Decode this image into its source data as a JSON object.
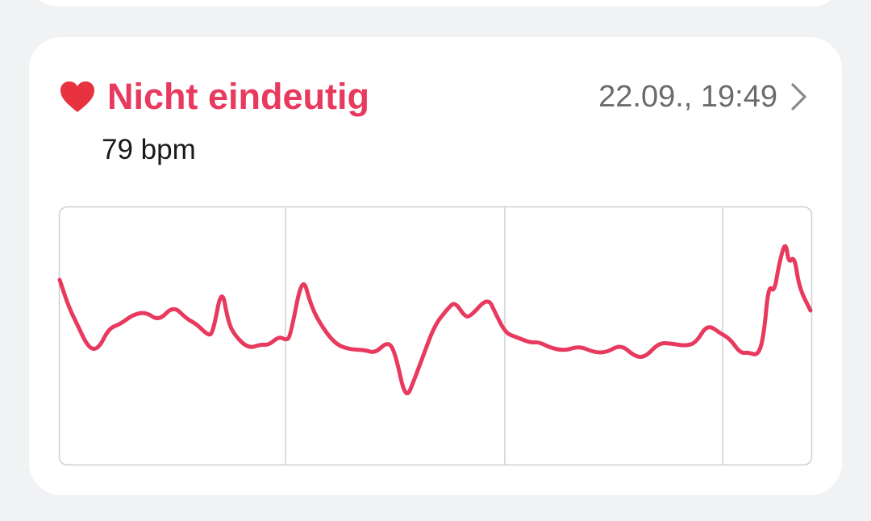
{
  "measurement": {
    "status_title": "Nicht eindeutig",
    "datetime": "22.09., 19:49",
    "heart_rate": "79 bpm",
    "icons": {
      "status": "heart-icon",
      "detail": "chevron-right-icon"
    },
    "colors": {
      "accent": "#e8395e",
      "trace": "#e8395e",
      "grid": "#d0d0d0"
    }
  },
  "chart_data": {
    "type": "line",
    "title": "",
    "xlabel": "",
    "ylabel": "",
    "grid": "vertical lines only",
    "vertical_gridlines": 3
  }
}
